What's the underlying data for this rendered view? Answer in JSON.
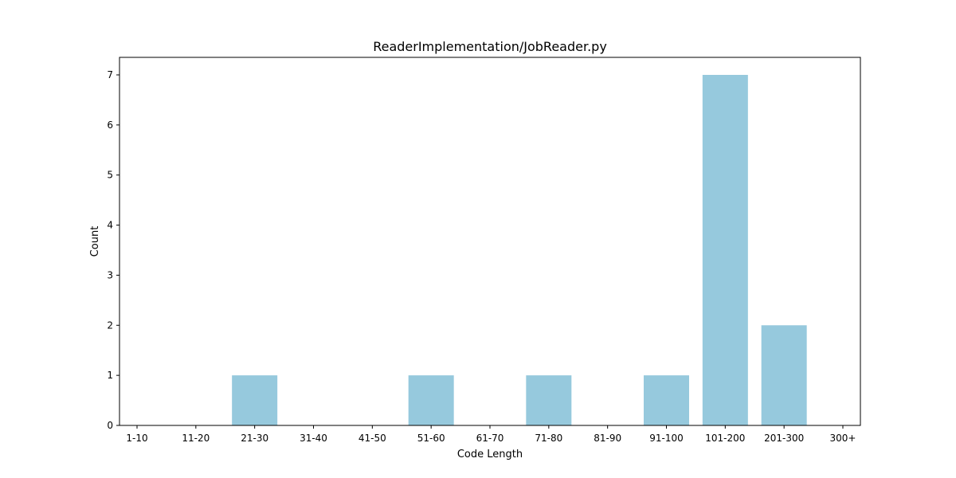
{
  "chart_data": {
    "type": "bar",
    "title": "ReaderImplementation/JobReader.py",
    "xlabel": "Code Length",
    "ylabel": "Count",
    "categories": [
      "1-10",
      "11-20",
      "21-30",
      "31-40",
      "41-50",
      "51-60",
      "61-70",
      "71-80",
      "81-90",
      "91-100",
      "101-200",
      "201-300",
      "300+"
    ],
    "values": [
      0,
      0,
      1,
      0,
      0,
      1,
      0,
      1,
      0,
      1,
      7,
      2,
      0
    ],
    "ylim": [
      0,
      7.35
    ],
    "yticks": [
      0,
      1,
      2,
      3,
      4,
      5,
      6,
      7
    ],
    "bar_color": "#96c9dd",
    "grid": false,
    "legend": "none"
  }
}
